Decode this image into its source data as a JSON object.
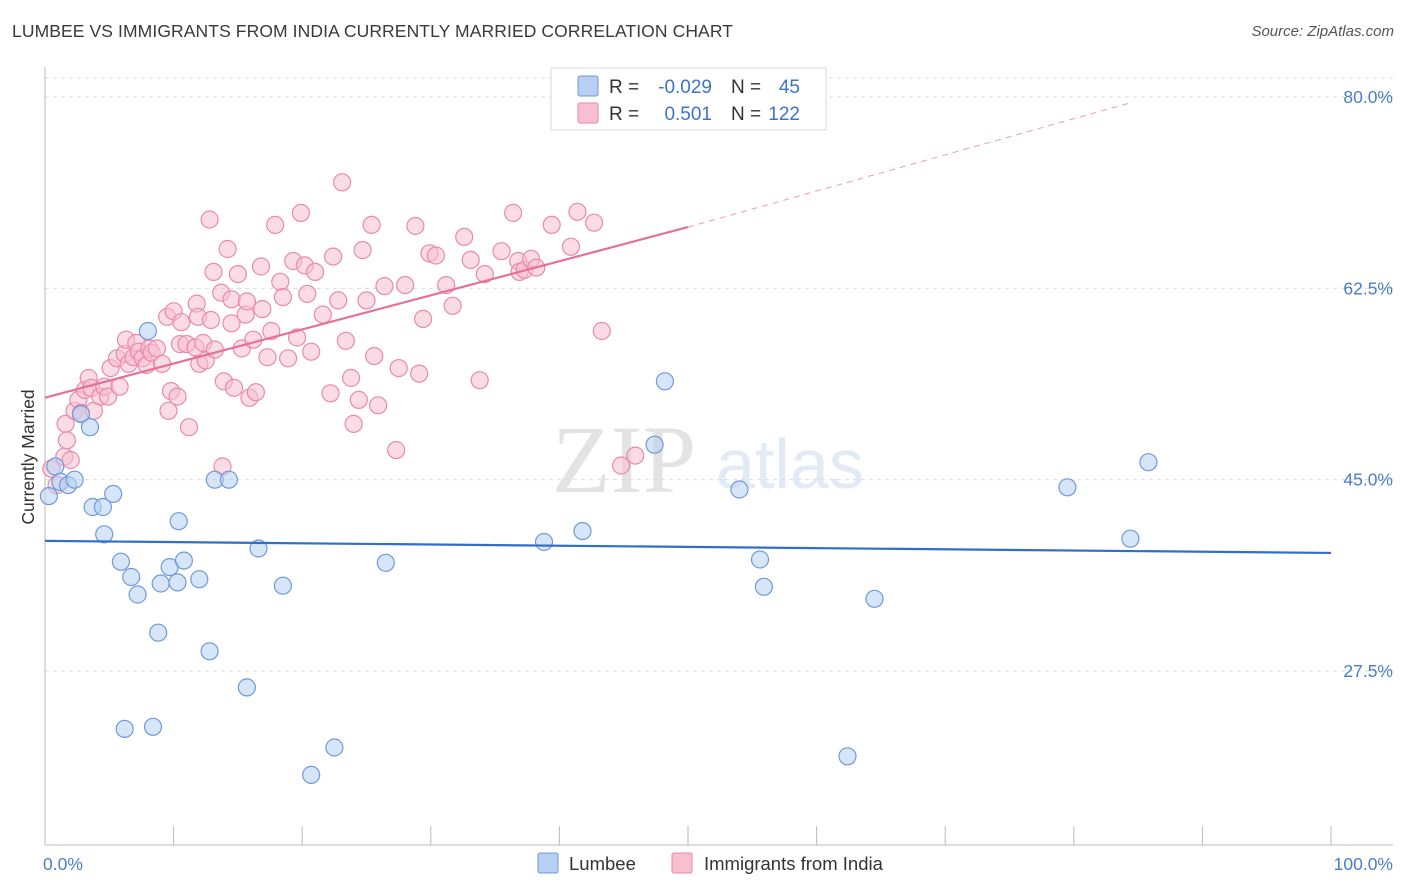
{
  "title": "LUMBEE VS IMMIGRANTS FROM INDIA CURRENTLY MARRIED CORRELATION CHART",
  "source": "Source: ZipAtlas.com",
  "watermark": {
    "zip": "ZIP",
    "atlas": "atlas"
  },
  "colors": {
    "lumbee_fill": "#b6cff2",
    "lumbee_stroke": "#6f9ad8",
    "lumbee_line": "#2f6fcb",
    "india_fill": "#f7bfd0",
    "india_stroke": "#ea8aa9",
    "india_line": "#e5709a",
    "axis_text": "#4a7dc8",
    "grid": "#dcdcdc"
  },
  "legend": {
    "rows": [
      {
        "r_label": "R =",
        "r_value": "-0.029",
        "n_label": "N =",
        "n_value": "45"
      },
      {
        "r_label": "R =",
        "r_value": "0.501",
        "n_label": "N =",
        "n_value": "122"
      }
    ]
  },
  "chart_data": {
    "type": "scatter",
    "title": "LUMBEE VS IMMIGRANTS FROM INDIA CURRENTLY MARRIED CORRELATION CHART",
    "xlabel": "",
    "ylabel": "Currently Married",
    "xlim": [
      0,
      100
    ],
    "ylim": [
      10.5,
      82
    ],
    "x_tick_labels": [
      "0.0%",
      "100.0%"
    ],
    "y_ticks": [
      27.5,
      45.0,
      62.5,
      80.0
    ],
    "y_tick_labels": [
      "27.5%",
      "45.0%",
      "62.5%",
      "80.0%"
    ],
    "grid": true,
    "legend_position": "top-center",
    "series": [
      {
        "name": "Lumbee",
        "trend": {
          "x0": 0,
          "y0": 39.4,
          "x1": 100,
          "y1": 38.3
        },
        "points": [
          [
            0.3,
            43.5
          ],
          [
            0.8,
            46.2
          ],
          [
            1.2,
            44.8
          ],
          [
            1.8,
            44.5
          ],
          [
            2.3,
            45.0
          ],
          [
            2.8,
            51.0
          ],
          [
            3.5,
            49.8
          ],
          [
            3.7,
            42.5
          ],
          [
            4.5,
            42.5
          ],
          [
            4.6,
            40.0
          ],
          [
            5.3,
            43.7
          ],
          [
            5.9,
            37.5
          ],
          [
            6.7,
            36.1
          ],
          [
            7.2,
            34.5
          ],
          [
            8.0,
            58.6
          ],
          [
            8.8,
            31.0
          ],
          [
            9.0,
            35.5
          ],
          [
            9.7,
            37.0
          ],
          [
            10.3,
            35.6
          ],
          [
            10.4,
            41.2
          ],
          [
            10.8,
            37.6
          ],
          [
            12.0,
            35.9
          ],
          [
            12.8,
            29.3
          ],
          [
            13.2,
            45.0
          ],
          [
            14.3,
            45.0
          ],
          [
            15.7,
            26.0
          ],
          [
            6.2,
            22.2
          ],
          [
            8.4,
            22.4
          ],
          [
            16.6,
            38.7
          ],
          [
            18.5,
            35.3
          ],
          [
            22.5,
            20.5
          ],
          [
            20.7,
            18.0
          ],
          [
            26.5,
            37.4
          ],
          [
            47.4,
            48.2
          ],
          [
            38.8,
            39.3
          ],
          [
            41.8,
            40.3
          ],
          [
            48.2,
            54.0
          ],
          [
            54.0,
            44.1
          ],
          [
            55.6,
            37.7
          ],
          [
            55.9,
            35.2
          ],
          [
            64.5,
            34.1
          ],
          [
            62.4,
            19.7
          ],
          [
            79.5,
            44.3
          ],
          [
            84.4,
            39.6
          ],
          [
            85.8,
            46.6
          ]
        ]
      },
      {
        "name": "Immigrants from India",
        "trend": {
          "x0": 0,
          "y0": 52.5,
          "x1": 50,
          "y1": 68.1,
          "dash_x1": 84.5,
          "dash_y1": 79.5
        },
        "points": [
          [
            0.5,
            46.0
          ],
          [
            0.9,
            44.5
          ],
          [
            1.5,
            47.1
          ],
          [
            1.6,
            50.1
          ],
          [
            1.7,
            48.6
          ],
          [
            2.0,
            46.8
          ],
          [
            2.3,
            51.3
          ],
          [
            2.6,
            52.3
          ],
          [
            2.8,
            51.1
          ],
          [
            3.1,
            53.2
          ],
          [
            3.4,
            54.3
          ],
          [
            3.6,
            53.4
          ],
          [
            3.8,
            51.3
          ],
          [
            4.3,
            52.6
          ],
          [
            4.6,
            53.5
          ],
          [
            4.9,
            52.6
          ],
          [
            5.1,
            55.2
          ],
          [
            5.6,
            56.1
          ],
          [
            5.8,
            53.5
          ],
          [
            6.2,
            56.5
          ],
          [
            6.3,
            57.8
          ],
          [
            6.5,
            55.6
          ],
          [
            6.9,
            56.2
          ],
          [
            7.1,
            57.5
          ],
          [
            7.3,
            56.7
          ],
          [
            7.6,
            56.1
          ],
          [
            7.9,
            55.5
          ],
          [
            8.1,
            57.0
          ],
          [
            8.3,
            56.6
          ],
          [
            8.7,
            57.0
          ],
          [
            9.1,
            55.6
          ],
          [
            9.5,
            59.9
          ],
          [
            9.6,
            51.3
          ],
          [
            9.8,
            53.1
          ],
          [
            10.0,
            60.4
          ],
          [
            10.3,
            52.6
          ],
          [
            10.5,
            57.4
          ],
          [
            10.6,
            59.4
          ],
          [
            11.0,
            57.4
          ],
          [
            11.2,
            49.8
          ],
          [
            11.7,
            57.1
          ],
          [
            11.8,
            61.1
          ],
          [
            11.9,
            59.9
          ],
          [
            12.0,
            55.6
          ],
          [
            12.3,
            57.5
          ],
          [
            12.5,
            55.9
          ],
          [
            12.8,
            68.8
          ],
          [
            12.9,
            59.6
          ],
          [
            13.1,
            64.0
          ],
          [
            13.2,
            56.9
          ],
          [
            13.7,
            62.1
          ],
          [
            13.8,
            46.2
          ],
          [
            13.9,
            54.0
          ],
          [
            14.2,
            66.1
          ],
          [
            14.5,
            61.5
          ],
          [
            14.5,
            59.3
          ],
          [
            14.7,
            53.4
          ],
          [
            15.0,
            63.8
          ],
          [
            15.3,
            57.0
          ],
          [
            15.6,
            60.1
          ],
          [
            15.7,
            61.3
          ],
          [
            15.9,
            52.5
          ],
          [
            16.2,
            57.8
          ],
          [
            16.4,
            53.0
          ],
          [
            16.8,
            64.5
          ],
          [
            16.9,
            60.6
          ],
          [
            17.3,
            56.2
          ],
          [
            17.6,
            58.6
          ],
          [
            17.9,
            68.3
          ],
          [
            18.3,
            63.1
          ],
          [
            18.5,
            61.7
          ],
          [
            18.9,
            56.1
          ],
          [
            19.3,
            65.0
          ],
          [
            19.6,
            58.0
          ],
          [
            19.9,
            69.4
          ],
          [
            20.2,
            64.6
          ],
          [
            20.4,
            62.0
          ],
          [
            20.7,
            56.7
          ],
          [
            21.0,
            64.0
          ],
          [
            21.6,
            60.1
          ],
          [
            22.2,
            52.9
          ],
          [
            22.4,
            65.4
          ],
          [
            22.8,
            61.4
          ],
          [
            23.1,
            72.2
          ],
          [
            23.4,
            57.7
          ],
          [
            23.8,
            54.3
          ],
          [
            24.0,
            50.1
          ],
          [
            24.4,
            52.3
          ],
          [
            24.7,
            66.0
          ],
          [
            25.0,
            61.4
          ],
          [
            25.4,
            68.3
          ],
          [
            25.6,
            56.3
          ],
          [
            25.9,
            51.8
          ],
          [
            26.4,
            62.7
          ],
          [
            27.3,
            47.7
          ],
          [
            27.5,
            55.2
          ],
          [
            28.0,
            62.8
          ],
          [
            28.8,
            68.2
          ],
          [
            29.1,
            54.7
          ],
          [
            29.4,
            59.7
          ],
          [
            29.9,
            65.7
          ],
          [
            30.4,
            65.5
          ],
          [
            31.2,
            62.8
          ],
          [
            31.7,
            60.9
          ],
          [
            32.6,
            67.2
          ],
          [
            33.1,
            65.1
          ],
          [
            33.8,
            54.1
          ],
          [
            34.2,
            63.8
          ],
          [
            35.5,
            65.9
          ],
          [
            36.4,
            69.4
          ],
          [
            36.8,
            65.0
          ],
          [
            36.9,
            64.0
          ],
          [
            37.3,
            64.2
          ],
          [
            37.8,
            65.2
          ],
          [
            38.2,
            64.4
          ],
          [
            39.4,
            68.3
          ],
          [
            40.9,
            66.3
          ],
          [
            41.4,
            69.5
          ],
          [
            42.7,
            68.5
          ],
          [
            43.3,
            58.6
          ],
          [
            44.8,
            46.3
          ],
          [
            45.9,
            47.2
          ]
        ]
      }
    ]
  }
}
